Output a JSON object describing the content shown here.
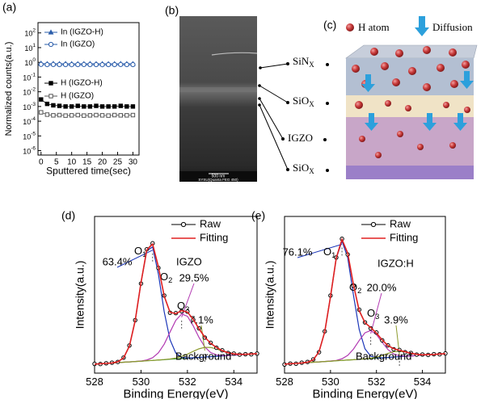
{
  "chart_data": [
    {
      "type": "line",
      "panel_label": "(a)",
      "xlabel": "Sputtered time(sec)",
      "ylabel": "Normalized counts(a.u.)",
      "log_y": true,
      "xlim": [
        -1,
        32
      ],
      "xticks": [
        0,
        5,
        10,
        15,
        20,
        25,
        30
      ],
      "ylim": [
        5e-07,
        500
      ],
      "yticks": [
        {
          "value": 1e-06,
          "label": "10",
          "exponent": "-6"
        },
        {
          "value": 1e-05,
          "label": "10",
          "exponent": "-5"
        },
        {
          "value": 0.0001,
          "label": "10",
          "exponent": "-4"
        },
        {
          "value": 0.001,
          "label": "10",
          "exponent": "-3"
        },
        {
          "value": 0.01,
          "label": "10",
          "exponent": "-2"
        },
        {
          "value": 0.1,
          "label": "10",
          "exponent": "-1"
        },
        {
          "value": 1,
          "label": "10",
          "exponent": "0"
        },
        {
          "value": 10,
          "label": "10",
          "exponent": "1"
        },
        {
          "value": 100,
          "label": "10",
          "exponent": "2"
        }
      ],
      "x": [
        0,
        2,
        4,
        6,
        8,
        10,
        12,
        14,
        16,
        18,
        20,
        22,
        24,
        26,
        28,
        30
      ],
      "series": [
        {
          "name": "In (IGZO-H)",
          "color": "#2a5caa",
          "marker": "triangle",
          "filled": true,
          "values": [
            0.85,
            0.8,
            0.82,
            0.8,
            0.81,
            0.8,
            0.79,
            0.8,
            0.81,
            0.8,
            0.8,
            0.79,
            0.8,
            0.81,
            0.8,
            0.8
          ]
        },
        {
          "name": "In (IGZO)",
          "color": "#2a5caa",
          "marker": "circle",
          "filled": false,
          "values": [
            0.72,
            0.7,
            0.71,
            0.7,
            0.7,
            0.69,
            0.7,
            0.71,
            0.7,
            0.7,
            0.69,
            0.7,
            0.7,
            0.71,
            0.7,
            0.7
          ]
        },
        {
          "name": "H (IGZO-H)",
          "color": "#000000",
          "marker": "square",
          "filled": true,
          "values": [
            0.003,
            0.0015,
            0.0012,
            0.0011,
            0.001,
            0.001,
            0.0011,
            0.001,
            0.001,
            0.0011,
            0.001,
            0.001,
            0.001,
            0.0011,
            0.001,
            0.001
          ]
        },
        {
          "name": "H (IGZO)",
          "color": "#555555",
          "marker": "square",
          "filled": false,
          "values": [
            0.0004,
            0.00028,
            0.00025,
            0.00026,
            0.00024,
            0.00025,
            0.00026,
            0.00024,
            0.00025,
            0.00026,
            0.00025,
            0.00024,
            0.00026,
            0.00025,
            0.00025,
            0.00026
          ]
        }
      ]
    },
    {
      "type": "spectrum",
      "panel_label": "(d)",
      "sample": "IGZO",
      "xlabel": "Binding Energy(eV)",
      "ylabel": "Intensity(a.u.)",
      "xlim": [
        528,
        535
      ],
      "xticks": [
        528,
        530,
        532,
        534
      ],
      "ylim": [
        0,
        1.05
      ],
      "x": [
        528,
        528.25,
        528.5,
        528.75,
        529,
        529.25,
        529.5,
        529.75,
        530,
        530.25,
        530.5,
        530.75,
        531,
        531.25,
        531.5,
        531.75,
        532,
        532.25,
        532.5,
        532.75,
        533,
        533.25,
        533.5,
        533.75,
        534,
        534.25,
        534.5,
        534.75,
        535
      ],
      "series": [
        {
          "name": "Raw",
          "color": "#000000",
          "marker": "circle",
          "values": [
            0.062,
            0.061,
            0.066,
            0.07,
            0.075,
            0.104,
            0.185,
            0.355,
            0.6,
            0.83,
            0.87,
            0.705,
            0.52,
            0.405,
            0.402,
            0.415,
            0.412,
            0.358,
            0.3,
            0.238,
            0.203,
            0.17,
            0.153,
            0.135,
            0.131,
            0.124,
            0.127,
            0.126,
            0.131
          ]
        },
        {
          "name": "Fitting",
          "color": "#e02020",
          "values": [
            0.06,
            0.063,
            0.065,
            0.068,
            0.076,
            0.102,
            0.181,
            0.352,
            0.607,
            0.826,
            0.865,
            0.713,
            0.516,
            0.408,
            0.399,
            0.419,
            0.409,
            0.361,
            0.297,
            0.241,
            0.2,
            0.172,
            0.151,
            0.137,
            0.129,
            0.126,
            0.126,
            0.128,
            0.13
          ]
        }
      ],
      "components": [
        {
          "label": "O",
          "sub": "1",
          "percent": "63.4%",
          "color": "#1a35b8",
          "values": [
            0.06,
            0.063,
            0.065,
            0.068,
            0.076,
            0.102,
            0.181,
            0.352,
            0.606,
            0.82,
            0.846,
            0.664,
            0.411,
            0.224,
            0.134,
            0.106,
            0.101,
            0.103,
            0.105,
            0.108,
            0.11,
            0.113,
            0.115,
            0.118,
            0.12,
            0.123,
            0.125,
            0.128,
            0.13
          ]
        },
        {
          "label": "O",
          "sub": "2",
          "percent": "29.5%",
          "color": "#b23ab2",
          "values": [
            0.06,
            0.063,
            0.065,
            0.068,
            0.07,
            0.073,
            0.075,
            0.078,
            0.081,
            0.088,
            0.103,
            0.136,
            0.194,
            0.275,
            0.354,
            0.396,
            0.381,
            0.317,
            0.239,
            0.175,
            0.138,
            0.122,
            0.118,
            0.118,
            0.12,
            0.123,
            0.125,
            0.128,
            0.13
          ]
        },
        {
          "label": "O",
          "sub": "3",
          "percent": "7.1%",
          "color": "#8c9a2c",
          "values": [
            0.06,
            0.063,
            0.065,
            0.068,
            0.07,
            0.073,
            0.075,
            0.078,
            0.08,
            0.083,
            0.085,
            0.088,
            0.091,
            0.095,
            0.101,
            0.112,
            0.127,
            0.146,
            0.163,
            0.173,
            0.172,
            0.162,
            0.148,
            0.136,
            0.129,
            0.126,
            0.126,
            0.128,
            0.13
          ]
        }
      ],
      "background": {
        "label": "Background",
        "color": "#3f9b3f",
        "values": [
          0.06,
          0.063,
          0.065,
          0.068,
          0.07,
          0.073,
          0.075,
          0.078,
          0.08,
          0.083,
          0.085,
          0.088,
          0.09,
          0.093,
          0.095,
          0.098,
          0.1,
          0.103,
          0.105,
          0.108,
          0.11,
          0.113,
          0.115,
          0.118,
          0.12,
          0.123,
          0.125,
          0.128,
          0.13
        ]
      }
    },
    {
      "type": "spectrum",
      "panel_label": "(e)",
      "sample": "IGZO:H",
      "xlabel": "Binding Energy(eV)",
      "ylabel": "Intensity(a.u.)",
      "xlim": [
        528,
        535
      ],
      "xticks": [
        528,
        530,
        532,
        534
      ],
      "ylim": [
        0,
        1.05
      ],
      "x": [
        528,
        528.25,
        528.5,
        528.75,
        529,
        529.25,
        529.5,
        529.75,
        530,
        530.25,
        530.5,
        530.75,
        531,
        531.25,
        531.5,
        531.75,
        532,
        532.25,
        532.5,
        532.75,
        533,
        533.25,
        533.5,
        533.75,
        534,
        534.25,
        534.5,
        534.75,
        535
      ],
      "series": [
        {
          "name": "Raw",
          "color": "#000000",
          "marker": "circle",
          "values": [
            0.058,
            0.064,
            0.063,
            0.07,
            0.075,
            0.092,
            0.14,
            0.28,
            0.52,
            0.775,
            0.9,
            0.795,
            0.585,
            0.425,
            0.34,
            0.3,
            0.272,
            0.22,
            0.186,
            0.16,
            0.155,
            0.14,
            0.135,
            0.124,
            0.125,
            0.122,
            0.127,
            0.126,
            0.132
          ]
        },
        {
          "name": "Fitting",
          "color": "#e02020",
          "values": [
            0.06,
            0.063,
            0.065,
            0.068,
            0.073,
            0.089,
            0.143,
            0.277,
            0.512,
            0.771,
            0.896,
            0.804,
            0.592,
            0.418,
            0.338,
            0.305,
            0.268,
            0.222,
            0.184,
            0.164,
            0.153,
            0.143,
            0.133,
            0.126,
            0.123,
            0.124,
            0.125,
            0.128,
            0.13
          ]
        }
      ],
      "components": [
        {
          "label": "O",
          "sub": "1",
          "percent": "76.1%",
          "color": "#1a35b8",
          "values": [
            0.06,
            0.063,
            0.065,
            0.068,
            0.073,
            0.089,
            0.143,
            0.277,
            0.512,
            0.768,
            0.885,
            0.773,
            0.522,
            0.292,
            0.163,
            0.114,
            0.103,
            0.103,
            0.105,
            0.108,
            0.11,
            0.113,
            0.115,
            0.118,
            0.12,
            0.123,
            0.125,
            0.128,
            0.13
          ]
        },
        {
          "label": "O",
          "sub": "2",
          "percent": "20.0%",
          "color": "#b23ab2",
          "values": [
            0.06,
            0.063,
            0.065,
            0.068,
            0.07,
            0.073,
            0.075,
            0.078,
            0.081,
            0.085,
            0.096,
            0.119,
            0.161,
            0.219,
            0.27,
            0.286,
            0.258,
            0.206,
            0.158,
            0.128,
            0.116,
            0.114,
            0.115,
            0.118,
            0.12,
            0.123,
            0.125,
            0.128,
            0.13
          ]
        },
        {
          "label": "O",
          "sub": "3",
          "percent": "3.9%",
          "color": "#8c9a2c",
          "values": [
            0.06,
            0.063,
            0.065,
            0.068,
            0.07,
            0.073,
            0.075,
            0.078,
            0.08,
            0.083,
            0.085,
            0.088,
            0.09,
            0.093,
            0.096,
            0.1,
            0.107,
            0.118,
            0.132,
            0.143,
            0.146,
            0.142,
            0.133,
            0.126,
            0.123,
            0.124,
            0.125,
            0.128,
            0.13
          ]
        }
      ],
      "background": {
        "label": "Background",
        "color": "#3f9b3f",
        "values": [
          0.06,
          0.063,
          0.065,
          0.068,
          0.07,
          0.073,
          0.075,
          0.078,
          0.08,
          0.083,
          0.085,
          0.088,
          0.09,
          0.093,
          0.095,
          0.098,
          0.1,
          0.103,
          0.105,
          0.108,
          0.11,
          0.113,
          0.115,
          0.118,
          0.12,
          0.123,
          0.125,
          0.128,
          0.13
        ]
      }
    }
  ],
  "sem": {
    "panel_label": "(b)",
    "scale_bar": "500 nm",
    "instrument": "SYSU(Quanta FEG 450)",
    "layers": [
      {
        "name": "SiN",
        "sub": "X"
      },
      {
        "name": "SiO",
        "sub": "X"
      },
      {
        "name": "IGZO"
      },
      {
        "name": "SiO",
        "sub": "X"
      }
    ]
  },
  "diagram": {
    "panel_label": "(c)",
    "legend": [
      "H atom",
      "Diffusion"
    ]
  }
}
